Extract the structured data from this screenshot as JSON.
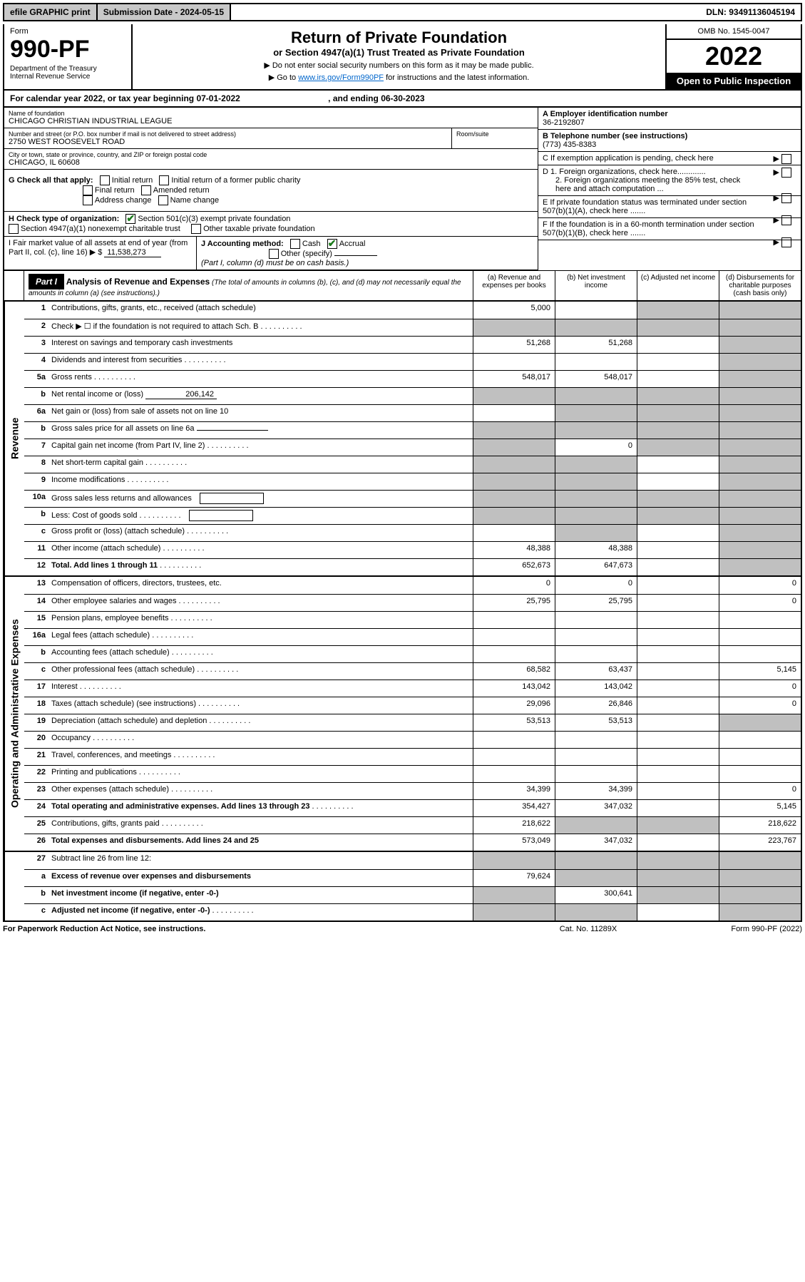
{
  "topbar": {
    "efile": "efile GRAPHIC print",
    "submission": "Submission Date - 2024-05-15",
    "dln": "DLN: 93491136045194"
  },
  "header": {
    "form_label": "Form",
    "form_number": "990-PF",
    "dept": "Department of the Treasury",
    "irs": "Internal Revenue Service",
    "title": "Return of Private Foundation",
    "subtitle": "or Section 4947(a)(1) Trust Treated as Private Foundation",
    "instr1": "▶ Do not enter social security numbers on this form as it may be made public.",
    "instr2": "▶ Go to ",
    "instr2_link": "www.irs.gov/Form990PF",
    "instr2_suffix": " for instructions and the latest information.",
    "omb": "OMB No. 1545-0047",
    "tax_year": "2022",
    "open_public": "Open to Public Inspection"
  },
  "cal_year": {
    "prefix": "For calendar year 2022, or tax year beginning ",
    "begin": "07-01-2022",
    "mid": " , and ending ",
    "end": "06-30-2023"
  },
  "foundation": {
    "name_label": "Name of foundation",
    "name": "CHICAGO CHRISTIAN INDUSTRIAL LEAGUE",
    "addr_label": "Number and street (or P.O. box number if mail is not delivered to street address)",
    "addr": "2750 WEST ROOSEVELT ROAD",
    "room_label": "Room/suite",
    "room": "",
    "city_label": "City or town, state or province, country, and ZIP or foreign postal code",
    "city": "CHICAGO, IL  60608",
    "ein_label": "A Employer identification number",
    "ein": "36-2192807",
    "phone_label": "B Telephone number (see instructions)",
    "phone": "(773) 435-8383",
    "c_label": "C If exemption application is pending, check here",
    "d1_label": "D 1. Foreign organizations, check here.............",
    "d2_label": "2. Foreign organizations meeting the 85% test, check here and attach computation ...",
    "e_label": "E  If private foundation status was terminated under section 507(b)(1)(A), check here .......",
    "f_label": "F  If the foundation is in a 60-month termination under section 507(b)(1)(B), check here .......",
    "g_label": "G Check all that apply:",
    "g_opts": [
      "Initial return",
      "Initial return of a former public charity",
      "Final return",
      "Amended return",
      "Address change",
      "Name change"
    ],
    "h_label": "H Check type of organization:",
    "h_opt1": "Section 501(c)(3) exempt private foundation",
    "h_opt2": "Section 4947(a)(1) nonexempt charitable trust",
    "h_opt3": "Other taxable private foundation",
    "i_label": "I Fair market value of all assets at end of year (from Part II, col. (c), line 16) ▶ $",
    "i_value": "11,538,273",
    "j_label": "J Accounting method:",
    "j_cash": "Cash",
    "j_accrual": "Accrual",
    "j_other": "Other (specify)",
    "j_note": "(Part I, column (d) must be on cash basis.)"
  },
  "part1": {
    "part_label": "Part I",
    "title": "Analysis of Revenue and Expenses",
    "title_note": "(The total of amounts in columns (b), (c), and (d) may not necessarily equal the amounts in column (a) (see instructions).)",
    "col_a": "(a)   Revenue and expenses per books",
    "col_b": "(b)   Net investment income",
    "col_c": "(c)   Adjusted net income",
    "col_d": "(d)  Disbursements for charitable purposes (cash basis only)"
  },
  "sections": {
    "revenue": "Revenue",
    "expenses": "Operating and Administrative Expenses"
  },
  "lines": [
    {
      "num": "1",
      "desc": "Contributions, gifts, grants, etc., received (attach schedule)",
      "a": "5,000",
      "b": "",
      "c": "shade",
      "d": "shade"
    },
    {
      "num": "2",
      "desc": "Check ▶ ☐ if the foundation is not required to attach Sch. B",
      "a": "shade",
      "b": "shade",
      "c": "shade",
      "d": "shade",
      "dots": true
    },
    {
      "num": "3",
      "desc": "Interest on savings and temporary cash investments",
      "a": "51,268",
      "b": "51,268",
      "c": "",
      "d": "shade"
    },
    {
      "num": "4",
      "desc": "Dividends and interest from securities",
      "a": "",
      "b": "",
      "c": "",
      "d": "shade",
      "dots": true
    },
    {
      "num": "5a",
      "desc": "Gross rents",
      "a": "548,017",
      "b": "548,017",
      "c": "",
      "d": "shade",
      "dots": true
    },
    {
      "num": "b",
      "desc": "Net rental income or (loss)",
      "inline": "206,142",
      "a": "shade",
      "b": "shade",
      "c": "shade",
      "d": "shade"
    },
    {
      "num": "6a",
      "desc": "Net gain or (loss) from sale of assets not on line 10",
      "a": "",
      "b": "shade",
      "c": "shade",
      "d": "shade"
    },
    {
      "num": "b",
      "desc": "Gross sales price for all assets on line 6a",
      "a": "shade",
      "b": "shade",
      "c": "shade",
      "d": "shade",
      "underline": true
    },
    {
      "num": "7",
      "desc": "Capital gain net income (from Part IV, line 2)",
      "a": "shade",
      "b": "0",
      "c": "shade",
      "d": "shade",
      "dots": true
    },
    {
      "num": "8",
      "desc": "Net short-term capital gain",
      "a": "shade",
      "b": "shade",
      "c": "",
      "d": "shade",
      "dots": true
    },
    {
      "num": "9",
      "desc": "Income modifications",
      "a": "shade",
      "b": "shade",
      "c": "",
      "d": "shade",
      "dots": true
    },
    {
      "num": "10a",
      "desc": "Gross sales less returns and allowances",
      "a": "shade",
      "b": "shade",
      "c": "shade",
      "d": "shade",
      "box": true
    },
    {
      "num": "b",
      "desc": "Less: Cost of goods sold",
      "a": "shade",
      "b": "shade",
      "c": "shade",
      "d": "shade",
      "box": true,
      "dots": true
    },
    {
      "num": "c",
      "desc": "Gross profit or (loss) (attach schedule)",
      "a": "",
      "b": "shade",
      "c": "",
      "d": "shade",
      "dots": true
    },
    {
      "num": "11",
      "desc": "Other income (attach schedule)",
      "a": "48,388",
      "b": "48,388",
      "c": "",
      "d": "shade",
      "dots": true
    },
    {
      "num": "12",
      "desc": "Total. Add lines 1 through 11",
      "a": "652,673",
      "b": "647,673",
      "c": "",
      "d": "shade",
      "bold": true,
      "dots": true
    }
  ],
  "exp_lines": [
    {
      "num": "13",
      "desc": "Compensation of officers, directors, trustees, etc.",
      "a": "0",
      "b": "0",
      "c": "",
      "d": "0"
    },
    {
      "num": "14",
      "desc": "Other employee salaries and wages",
      "a": "25,795",
      "b": "25,795",
      "c": "",
      "d": "0",
      "dots": true
    },
    {
      "num": "15",
      "desc": "Pension plans, employee benefits",
      "a": "",
      "b": "",
      "c": "",
      "d": "",
      "dots": true
    },
    {
      "num": "16a",
      "desc": "Legal fees (attach schedule)",
      "a": "",
      "b": "",
      "c": "",
      "d": "",
      "dots": true
    },
    {
      "num": "b",
      "desc": "Accounting fees (attach schedule)",
      "a": "",
      "b": "",
      "c": "",
      "d": "",
      "dots": true
    },
    {
      "num": "c",
      "desc": "Other professional fees (attach schedule)",
      "a": "68,582",
      "b": "63,437",
      "c": "",
      "d": "5,145",
      "dots": true
    },
    {
      "num": "17",
      "desc": "Interest",
      "a": "143,042",
      "b": "143,042",
      "c": "",
      "d": "0",
      "dots": true
    },
    {
      "num": "18",
      "desc": "Taxes (attach schedule) (see instructions)",
      "a": "29,096",
      "b": "26,846",
      "c": "",
      "d": "0",
      "dots": true
    },
    {
      "num": "19",
      "desc": "Depreciation (attach schedule) and depletion",
      "a": "53,513",
      "b": "53,513",
      "c": "",
      "d": "shade",
      "dots": true
    },
    {
      "num": "20",
      "desc": "Occupancy",
      "a": "",
      "b": "",
      "c": "",
      "d": "",
      "dots": true
    },
    {
      "num": "21",
      "desc": "Travel, conferences, and meetings",
      "a": "",
      "b": "",
      "c": "",
      "d": "",
      "dots": true
    },
    {
      "num": "22",
      "desc": "Printing and publications",
      "a": "",
      "b": "",
      "c": "",
      "d": "",
      "dots": true
    },
    {
      "num": "23",
      "desc": "Other expenses (attach schedule)",
      "a": "34,399",
      "b": "34,399",
      "c": "",
      "d": "0",
      "dots": true
    },
    {
      "num": "24",
      "desc": "Total operating and administrative expenses. Add lines 13 through 23",
      "a": "354,427",
      "b": "347,032",
      "c": "",
      "d": "5,145",
      "bold": true,
      "dots": true
    },
    {
      "num": "25",
      "desc": "Contributions, gifts, grants paid",
      "a": "218,622",
      "b": "shade",
      "c": "shade",
      "d": "218,622",
      "dots": true
    },
    {
      "num": "26",
      "desc": "Total expenses and disbursements. Add lines 24 and 25",
      "a": "573,049",
      "b": "347,032",
      "c": "",
      "d": "223,767",
      "bold": true
    }
  ],
  "bottom_lines": [
    {
      "num": "27",
      "desc": "Subtract line 26 from line 12:",
      "a": "shade",
      "b": "shade",
      "c": "shade",
      "d": "shade"
    },
    {
      "num": "a",
      "desc": "Excess of revenue over expenses and disbursements",
      "a": "79,624",
      "b": "shade",
      "c": "shade",
      "d": "shade",
      "bold": true
    },
    {
      "num": "b",
      "desc": "Net investment income (if negative, enter -0-)",
      "a": "shade",
      "b": "300,641",
      "c": "shade",
      "d": "shade",
      "bold": true
    },
    {
      "num": "c",
      "desc": "Adjusted net income (if negative, enter -0-)",
      "a": "shade",
      "b": "shade",
      "c": "",
      "d": "shade",
      "bold": true,
      "dots": true
    }
  ],
  "footer": {
    "left": "For Paperwork Reduction Act Notice, see instructions.",
    "center": "Cat. No. 11289X",
    "right": "Form 990-PF (2022)"
  }
}
